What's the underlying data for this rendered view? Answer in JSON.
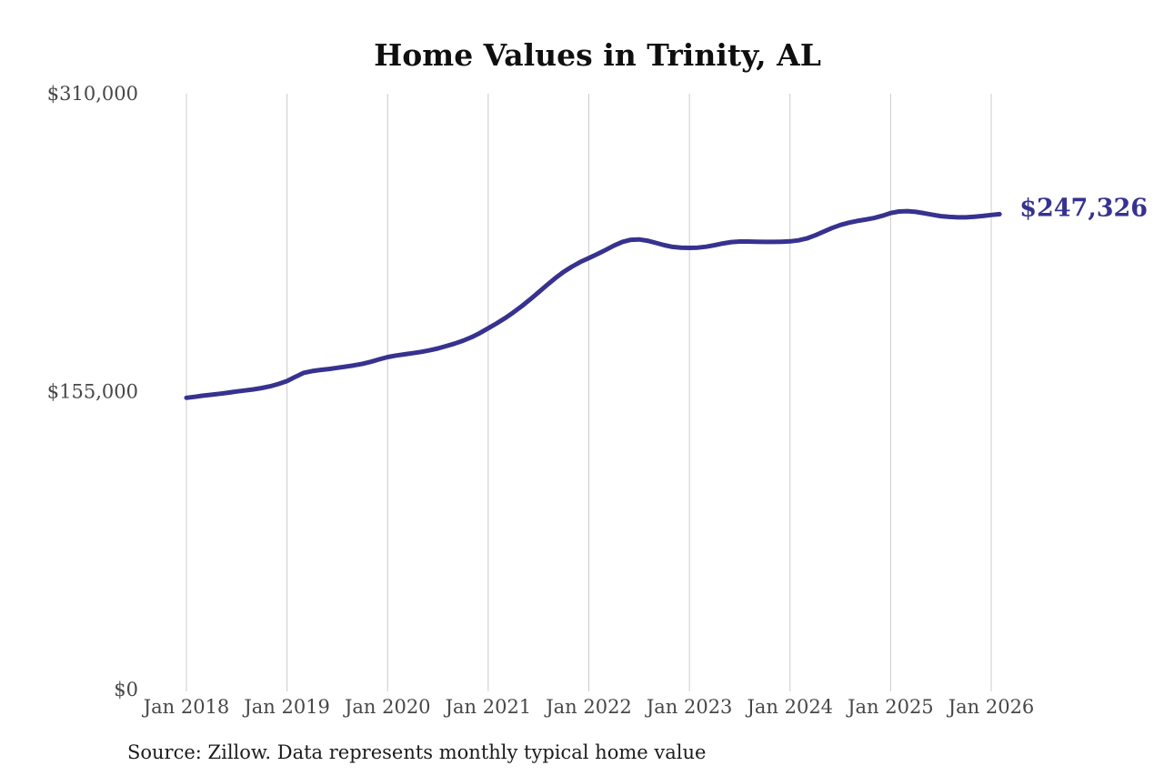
{
  "title": "Home Values in Trinity, AL",
  "end_label": "$247,326",
  "source_note": "Source: Zillow. Data represents monthly typical home value",
  "colors": {
    "line": "#37328f",
    "grid": "#cccccc",
    "axis_text": "#474747",
    "title_text": "#0f0f0f",
    "source_text": "#1c1c1c",
    "background": "#ffffff"
  },
  "y_axis": {
    "ticks": [
      {
        "label": "$0",
        "value": 0
      },
      {
        "label": "$155,000",
        "value": 155000
      },
      {
        "label": "$310,000",
        "value": 310000
      }
    ]
  },
  "x_axis": {
    "ticks": [
      "Jan 2018",
      "Jan 2019",
      "Jan 2020",
      "Jan 2021",
      "Jan 2022",
      "Jan 2023",
      "Jan 2024",
      "Jan 2025",
      "Jan 2026"
    ]
  },
  "chart_data": {
    "type": "line",
    "title": "Home Values in Trinity, AL",
    "xlabel": "",
    "ylabel": "",
    "ylim": [
      0,
      310000
    ],
    "x_start": "2018-01",
    "x_end": "2026-02",
    "interval": "monthly",
    "grid": "vertical-only",
    "legend": "none",
    "x_tick_labels": [
      "Jan 2018",
      "Jan 2019",
      "Jan 2020",
      "Jan 2021",
      "Jan 2022",
      "Jan 2023",
      "Jan 2024",
      "Jan 2025",
      "Jan 2026"
    ],
    "y_tick_labels": [
      "$0",
      "$155,000",
      "$310,000"
    ],
    "end_value": 247326,
    "series": [
      {
        "name": "Monthly typical home value",
        "values": [
          151800,
          152300,
          152900,
          153400,
          153900,
          154500,
          155100,
          155600,
          156200,
          156900,
          157800,
          159000,
          160500,
          162700,
          164800,
          165700,
          166300,
          166800,
          167400,
          168000,
          168700,
          169500,
          170500,
          171800,
          173000,
          173800,
          174400,
          175000,
          175700,
          176500,
          177500,
          178700,
          180000,
          181500,
          183300,
          185500,
          188000,
          190500,
          193200,
          196200,
          199500,
          203000,
          206700,
          210400,
          214000,
          217300,
          220100,
          222500,
          224500,
          226500,
          228700,
          231000,
          232900,
          234000,
          234200,
          233500,
          232400,
          231200,
          230300,
          229900,
          229800,
          229900,
          230400,
          231200,
          232100,
          232800,
          233100,
          233100,
          233000,
          232900,
          232900,
          233000,
          233200,
          233700,
          234700,
          236300,
          238200,
          240100,
          241700,
          242900,
          243800,
          244500,
          245300,
          246500,
          247900,
          248700,
          248900,
          248500,
          247800,
          247000,
          246300,
          245900,
          245700,
          245700,
          246000,
          246400,
          246900,
          247326
        ]
      }
    ]
  }
}
